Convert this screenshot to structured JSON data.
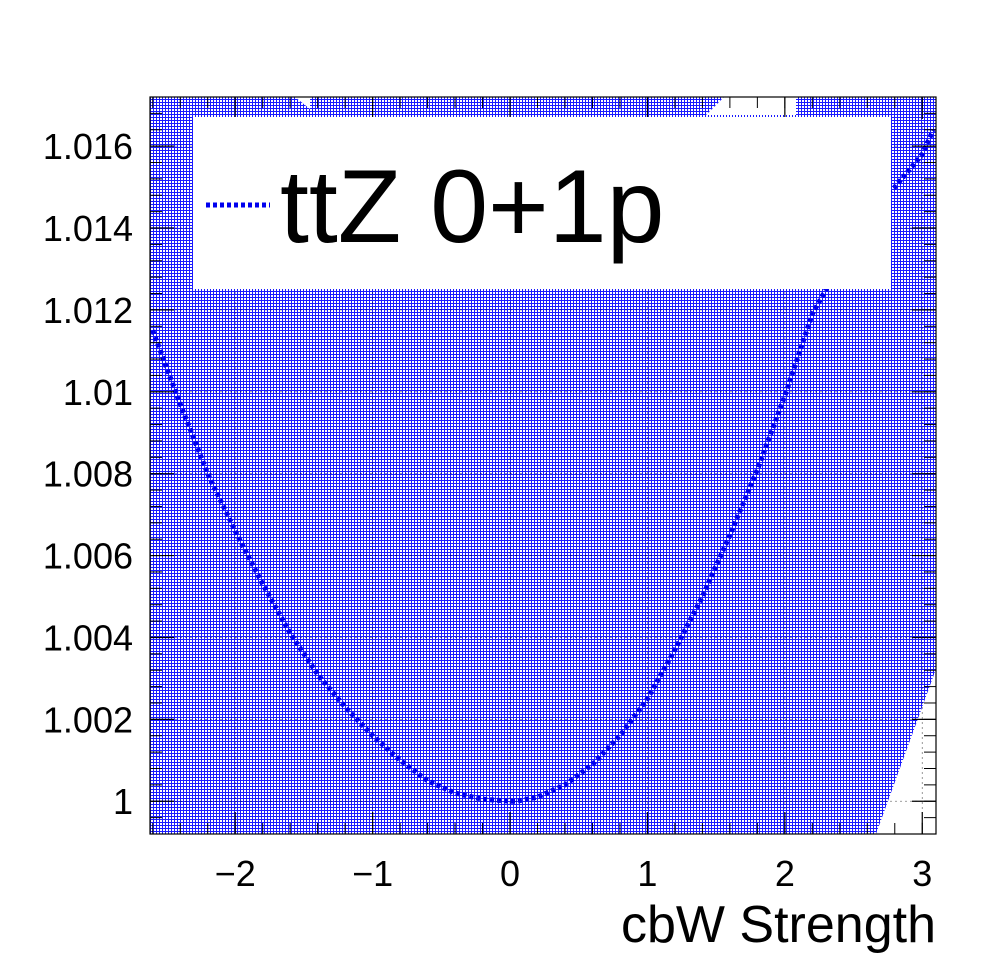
{
  "colors": {
    "background": "#ffffff",
    "fill_pattern": "#1a1aff",
    "curve": "#0000ee",
    "frame": "#000000"
  },
  "chart_data": {
    "type": "line",
    "title": "",
    "xlabel": "cbW Strength",
    "ylabel": "",
    "xlim": [
      -2.62,
      3.1
    ],
    "ylim": [
      0.9992,
      1.0172
    ],
    "xticks": [
      -2,
      -1,
      0,
      1,
      2,
      3
    ],
    "xtick_labels": [
      "−2",
      "−1",
      "0",
      "1",
      "2",
      "3"
    ],
    "yticks": [
      1.0,
      1.002,
      1.004,
      1.006,
      1.008,
      1.01,
      1.012,
      1.014,
      1.016
    ],
    "ytick_labels": [
      "1",
      "1.002",
      "1.004",
      "1.006",
      "1.008",
      "1.01",
      "1.012",
      "1.014",
      "1.016"
    ],
    "grid": true,
    "legend": {
      "position": "top-left",
      "entries": [
        "ttZ 0+1p"
      ]
    },
    "series": [
      {
        "name": "ttZ 0+1p",
        "style": "dotted",
        "color": "#0000ee",
        "x": [
          -2.6,
          -2.4,
          -2.2,
          -2.0,
          -1.8,
          -1.6,
          -1.4,
          -1.2,
          -1.0,
          -0.8,
          -0.6,
          -0.4,
          -0.2,
          0.0,
          0.05,
          0.2,
          0.4,
          0.6,
          0.8,
          1.0,
          1.2,
          1.4,
          1.6,
          1.8,
          2.0,
          2.2,
          2.4,
          2.6,
          2.8,
          3.0,
          3.08
        ],
        "y": [
          1.0115,
          1.0097,
          1.008,
          1.0066,
          1.0053,
          1.0041,
          1.0031,
          1.0023,
          1.0016,
          1.001,
          1.0005,
          1.0002,
          1.00005,
          1.0,
          1.0,
          1.0001,
          1.0004,
          1.0009,
          1.0016,
          1.0025,
          1.0037,
          1.005,
          1.0065,
          1.0081,
          1.0099,
          1.0119,
          1.0131,
          1.0145,
          1.015,
          1.0158,
          1.0164
        ]
      }
    ]
  }
}
